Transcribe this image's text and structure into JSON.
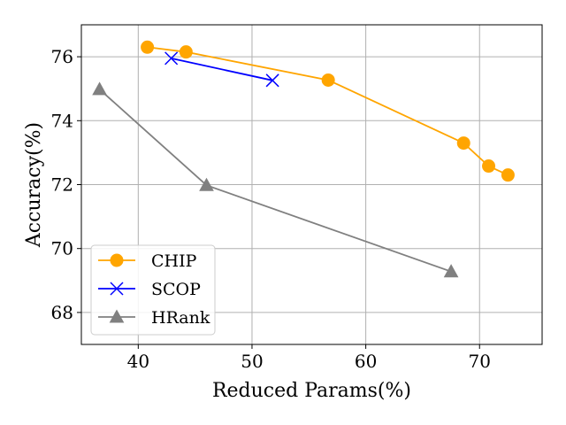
{
  "chart_data": {
    "type": "line",
    "title": "",
    "xlabel": "Reduced Params(%)",
    "ylabel": "Accuracy(%)",
    "xlim": [
      35,
      75.5
    ],
    "ylim": [
      67,
      77
    ],
    "xticks": [
      40,
      50,
      60,
      70
    ],
    "yticks": [
      68,
      70,
      72,
      74,
      76
    ],
    "grid": true,
    "legend_position": "lower-left",
    "series": [
      {
        "name": "CHIP",
        "color": "#FFA500",
        "marker": "circle",
        "x": [
          40.8,
          44.2,
          56.7,
          68.6,
          70.8,
          72.5
        ],
        "y": [
          76.3,
          76.15,
          75.27,
          73.3,
          72.58,
          72.3
        ]
      },
      {
        "name": "SCOP",
        "color": "#0000FF",
        "marker": "x",
        "x": [
          42.9,
          51.8
        ],
        "y": [
          75.95,
          75.26
        ]
      },
      {
        "name": "HRank",
        "color": "#808080",
        "marker": "triangle",
        "x": [
          36.6,
          46.0,
          67.5
        ],
        "y": [
          74.98,
          71.98,
          69.28
        ]
      }
    ]
  }
}
